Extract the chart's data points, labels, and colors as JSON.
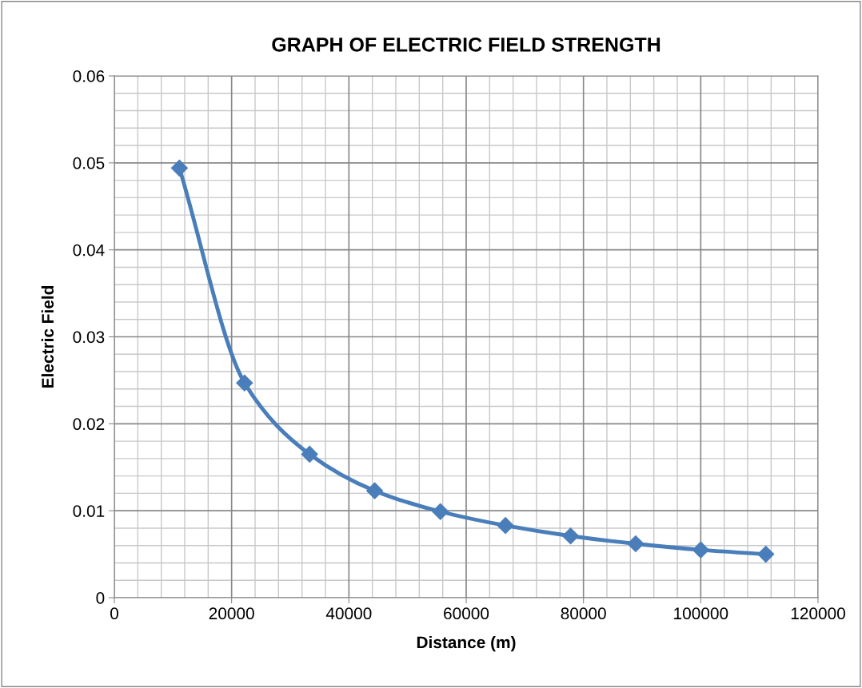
{
  "chart_data": {
    "type": "line",
    "title": "GRAPH OF ELECTRIC FIELD STRENGTH",
    "xlabel": "Distance (m)",
    "ylabel": "Electric Field",
    "x": [
      11100,
      22200,
      33300,
      44400,
      55600,
      66700,
      77800,
      88900,
      100000,
      111100
    ],
    "series": [
      {
        "color": "#4a7ebb",
        "values": [
          0.0494,
          0.0247,
          0.0165,
          0.0123,
          0.0099,
          0.0083,
          0.0071,
          0.0062,
          0.0055,
          0.005
        ]
      }
    ],
    "xlim": [
      0,
      120000
    ],
    "xticks": [
      0,
      20000,
      40000,
      60000,
      80000,
      100000,
      120000
    ],
    "ylim": [
      0,
      0.06
    ],
    "yticks": [
      {
        "value": 0,
        "label": "0"
      },
      0.01,
      0.02,
      0.03,
      0.04,
      0.05,
      0.06
    ],
    "grid": true,
    "marker": "diamond",
    "line_style": "solid",
    "legend": false
  }
}
